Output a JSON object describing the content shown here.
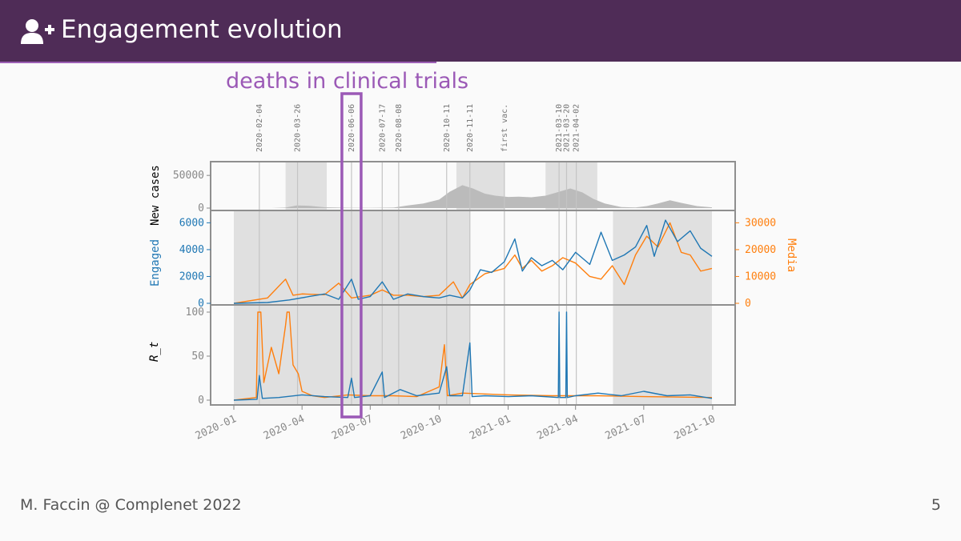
{
  "slide": {
    "title": "Engagement evolution",
    "annotation": "deaths in clinical trials",
    "footer_left": "M. Faccin @ Complenet 2022",
    "page_number": "5",
    "title_icon": "user-plus-icon"
  },
  "colors": {
    "header_bg": "#4f2c57",
    "accent": "#9b59b6",
    "engaged": "#1f77b4",
    "media": "#ff7f0e",
    "cases_fill": "#bbbbbb",
    "shade": "#e0e0e0",
    "vline": "#c4c4c4"
  },
  "chart_data": {
    "type": "line",
    "x_tick_labels": [
      "2020-01",
      "2020-04",
      "2020-07",
      "2020-10",
      "2021-01",
      "2021-04",
      "2021-07",
      "2021-10"
    ],
    "event_lines": [
      {
        "date": "2020-02-04",
        "label": "2020-02-04"
      },
      {
        "date": "2020-03-26",
        "label": "2020-03-26"
      },
      {
        "date": "2020-06-06",
        "label": "2020-06-06"
      },
      {
        "date": "2020-07-17",
        "label": "2020-07-17"
      },
      {
        "date": "2020-08-08",
        "label": "2020-08-08"
      },
      {
        "date": "2020-10-11",
        "label": "2020-10-11"
      },
      {
        "date": "2020-11-11",
        "label": "2020-11-11"
      },
      {
        "date": "2020-12-27",
        "label": "first vac."
      },
      {
        "date": "2021-03-10",
        "label": "2021-03-10"
      },
      {
        "date": "2021-03-20",
        "label": "2021-03-20"
      },
      {
        "date": "2021-04-02",
        "label": "2021-04-02"
      }
    ],
    "highlight": {
      "date": "2020-06-06",
      "label": "deaths in clinical trials"
    },
    "panels": [
      {
        "name": "cases",
        "ylabel": "New cases",
        "ylim": [
          0,
          60000
        ],
        "yticks": [
          "0",
          "50000"
        ],
        "shaded_periods": [
          [
            "2020-03-10",
            "2020-05-04"
          ],
          [
            "2020-10-24",
            "2020-12-27"
          ],
          [
            "2021-02-20",
            "2021-04-30"
          ]
        ],
        "series": [
          {
            "name": "New cases",
            "x": [
              "2020-02-20",
              "2020-03-10",
              "2020-03-25",
              "2020-04-10",
              "2020-05-01",
              "2020-06-01",
              "2020-07-01",
              "2020-08-01",
              "2020-08-20",
              "2020-09-10",
              "2020-10-01",
              "2020-10-15",
              "2020-11-01",
              "2020-11-15",
              "2020-12-01",
              "2020-12-15",
              "2021-01-01",
              "2021-01-15",
              "2021-02-01",
              "2021-02-20",
              "2021-03-10",
              "2021-03-25",
              "2021-04-10",
              "2021-04-25",
              "2021-05-10",
              "2021-06-01",
              "2021-06-20",
              "2021-07-05",
              "2021-07-20",
              "2021-08-05",
              "2021-08-20",
              "2021-09-10",
              "2021-09-30"
            ],
            "values": [
              0,
              800,
              4000,
              3500,
              1200,
              400,
              300,
              800,
              4000,
              7000,
              13000,
              25000,
              35000,
              30000,
              22000,
              19000,
              17000,
              17500,
              16500,
              19000,
              25000,
              30000,
              24000,
              14000,
              7000,
              1500,
              900,
              3000,
              7000,
              12000,
              8000,
              3000,
              1000
            ]
          }
        ]
      },
      {
        "name": "engagement",
        "ylabel": "Engaged",
        "ylim": [
          0,
          6500
        ],
        "yticks": [
          "0",
          "2000",
          "4000",
          "6000"
        ],
        "ylabel_right": "Media",
        "ylim_right": [
          0,
          32500
        ],
        "yticks_right": [
          "0",
          "10000",
          "20000",
          "30000"
        ],
        "shaded_periods": [
          [
            "2020-01-01",
            "2020-11-11"
          ],
          [
            "2021-05-21",
            "2021-09-30"
          ]
        ],
        "series": [
          {
            "name": "Engaged",
            "x": [
              "2020-01-01",
              "2020-02-15",
              "2020-03-15",
              "2020-04-10",
              "2020-05-01",
              "2020-05-20",
              "2020-06-06",
              "2020-06-15",
              "2020-07-01",
              "2020-07-17",
              "2020-08-01",
              "2020-08-20",
              "2020-09-10",
              "2020-10-01",
              "2020-10-15",
              "2020-11-01",
              "2020-11-11",
              "2020-11-25",
              "2020-12-10",
              "2020-12-27",
              "2021-01-10",
              "2021-01-20",
              "2021-02-01",
              "2021-02-15",
              "2021-03-01",
              "2021-03-15",
              "2021-04-01",
              "2021-04-20",
              "2021-05-05",
              "2021-05-20",
              "2021-06-05",
              "2021-06-20",
              "2021-07-05",
              "2021-07-15",
              "2021-07-30",
              "2021-08-15",
              "2021-09-01",
              "2021-09-15",
              "2021-09-30"
            ],
            "values": [
              0,
              60,
              250,
              500,
              700,
              300,
              1800,
              300,
              500,
              1600,
              300,
              700,
              500,
              400,
              600,
              400,
              1000,
              2500,
              2300,
              3100,
              4800,
              2400,
              3400,
              2800,
              3200,
              2500,
              3800,
              2900,
              5300,
              3200,
              3600,
              4200,
              5800,
              3500,
              6200,
              4600,
              5400,
              4100,
              3500
            ]
          },
          {
            "name": "Media",
            "x": [
              "2020-01-01",
              "2020-02-15",
              "2020-03-10",
              "2020-03-20",
              "2020-04-01",
              "2020-05-01",
              "2020-05-20",
              "2020-06-06",
              "2020-07-01",
              "2020-07-17",
              "2020-08-01",
              "2020-08-20",
              "2020-09-10",
              "2020-10-01",
              "2020-10-20",
              "2020-11-01",
              "2020-11-11",
              "2020-12-01",
              "2020-12-27",
              "2021-01-10",
              "2021-01-20",
              "2021-02-01",
              "2021-02-15",
              "2021-03-01",
              "2021-03-15",
              "2021-04-01",
              "2021-04-20",
              "2021-05-05",
              "2021-05-20",
              "2021-06-05",
              "2021-06-20",
              "2021-07-05",
              "2021-07-20",
              "2021-08-05",
              "2021-08-20",
              "2021-09-01",
              "2021-09-15",
              "2021-09-30"
            ],
            "values": [
              0,
              2000,
              9000,
              3000,
              3500,
              3200,
              7500,
              2000,
              3000,
              5000,
              3000,
              3000,
              2500,
              3000,
              8000,
              2000,
              7000,
              11000,
              13000,
              18000,
              13000,
              16000,
              12000,
              14000,
              17000,
              15000,
              10000,
              9000,
              14000,
              7000,
              18000,
              25000,
              21000,
              30000,
              19000,
              18000,
              12000,
              13000
            ]
          }
        ]
      },
      {
        "name": "rt",
        "ylabel": "R_t",
        "ylim": [
          0,
          100
        ],
        "yticks": [
          "0",
          "50",
          "100"
        ],
        "shaded_periods": [
          [
            "2020-01-01",
            "2020-11-11"
          ],
          [
            "2021-05-21",
            "2021-09-30"
          ]
        ],
        "series": [
          {
            "name": "Engaged",
            "x": [
              "2020-01-01",
              "2020-02-01",
              "2020-02-04",
              "2020-02-08",
              "2020-03-01",
              "2020-04-01",
              "2020-05-01",
              "2020-06-01",
              "2020-06-06",
              "2020-06-10",
              "2020-07-01",
              "2020-07-17",
              "2020-07-20",
              "2020-08-10",
              "2020-09-01",
              "2020-10-01",
              "2020-10-11",
              "2020-10-15",
              "2020-11-01",
              "2020-11-11",
              "2020-11-14",
              "2020-12-01",
              "2021-01-01",
              "2021-02-01",
              "2021-03-09",
              "2021-03-10",
              "2021-03-11",
              "2021-03-19",
              "2021-03-20",
              "2021-03-21",
              "2021-04-01",
              "2021-05-01",
              "2021-06-01",
              "2021-07-01",
              "2021-08-01",
              "2021-09-01",
              "2021-09-30"
            ],
            "values": [
              0,
              1,
              28,
              2,
              3,
              6,
              4,
              3,
              25,
              3,
              5,
              32,
              3,
              12,
              5,
              8,
              38,
              5,
              5,
              65,
              4,
              5,
              4,
              5,
              3,
              100,
              3,
              3,
              100,
              3,
              5,
              8,
              5,
              10,
              5,
              6,
              2
            ]
          },
          {
            "name": "Media",
            "x": [
              "2020-01-01",
              "2020-01-31",
              "2020-02-02",
              "2020-02-06",
              "2020-02-10",
              "2020-02-20",
              "2020-03-01",
              "2020-03-10",
              "2020-03-12",
              "2020-03-15",
              "2020-03-20",
              "2020-03-27",
              "2020-04-01",
              "2020-04-15",
              "2020-05-01",
              "2020-06-01",
              "2020-07-01",
              "2020-08-01",
              "2020-09-01",
              "2020-10-01",
              "2020-10-08",
              "2020-10-12",
              "2020-11-01",
              "2021-01-01",
              "2021-03-01",
              "2021-05-01",
              "2021-07-01",
              "2021-09-30"
            ],
            "values": [
              0,
              3,
              100,
              100,
              20,
              60,
              30,
              85,
              100,
              100,
              40,
              30,
              10,
              5,
              3,
              6,
              5,
              5,
              4,
              15,
              63,
              5,
              8,
              6,
              5,
              5,
              4,
              3
            ]
          }
        ]
      }
    ]
  }
}
